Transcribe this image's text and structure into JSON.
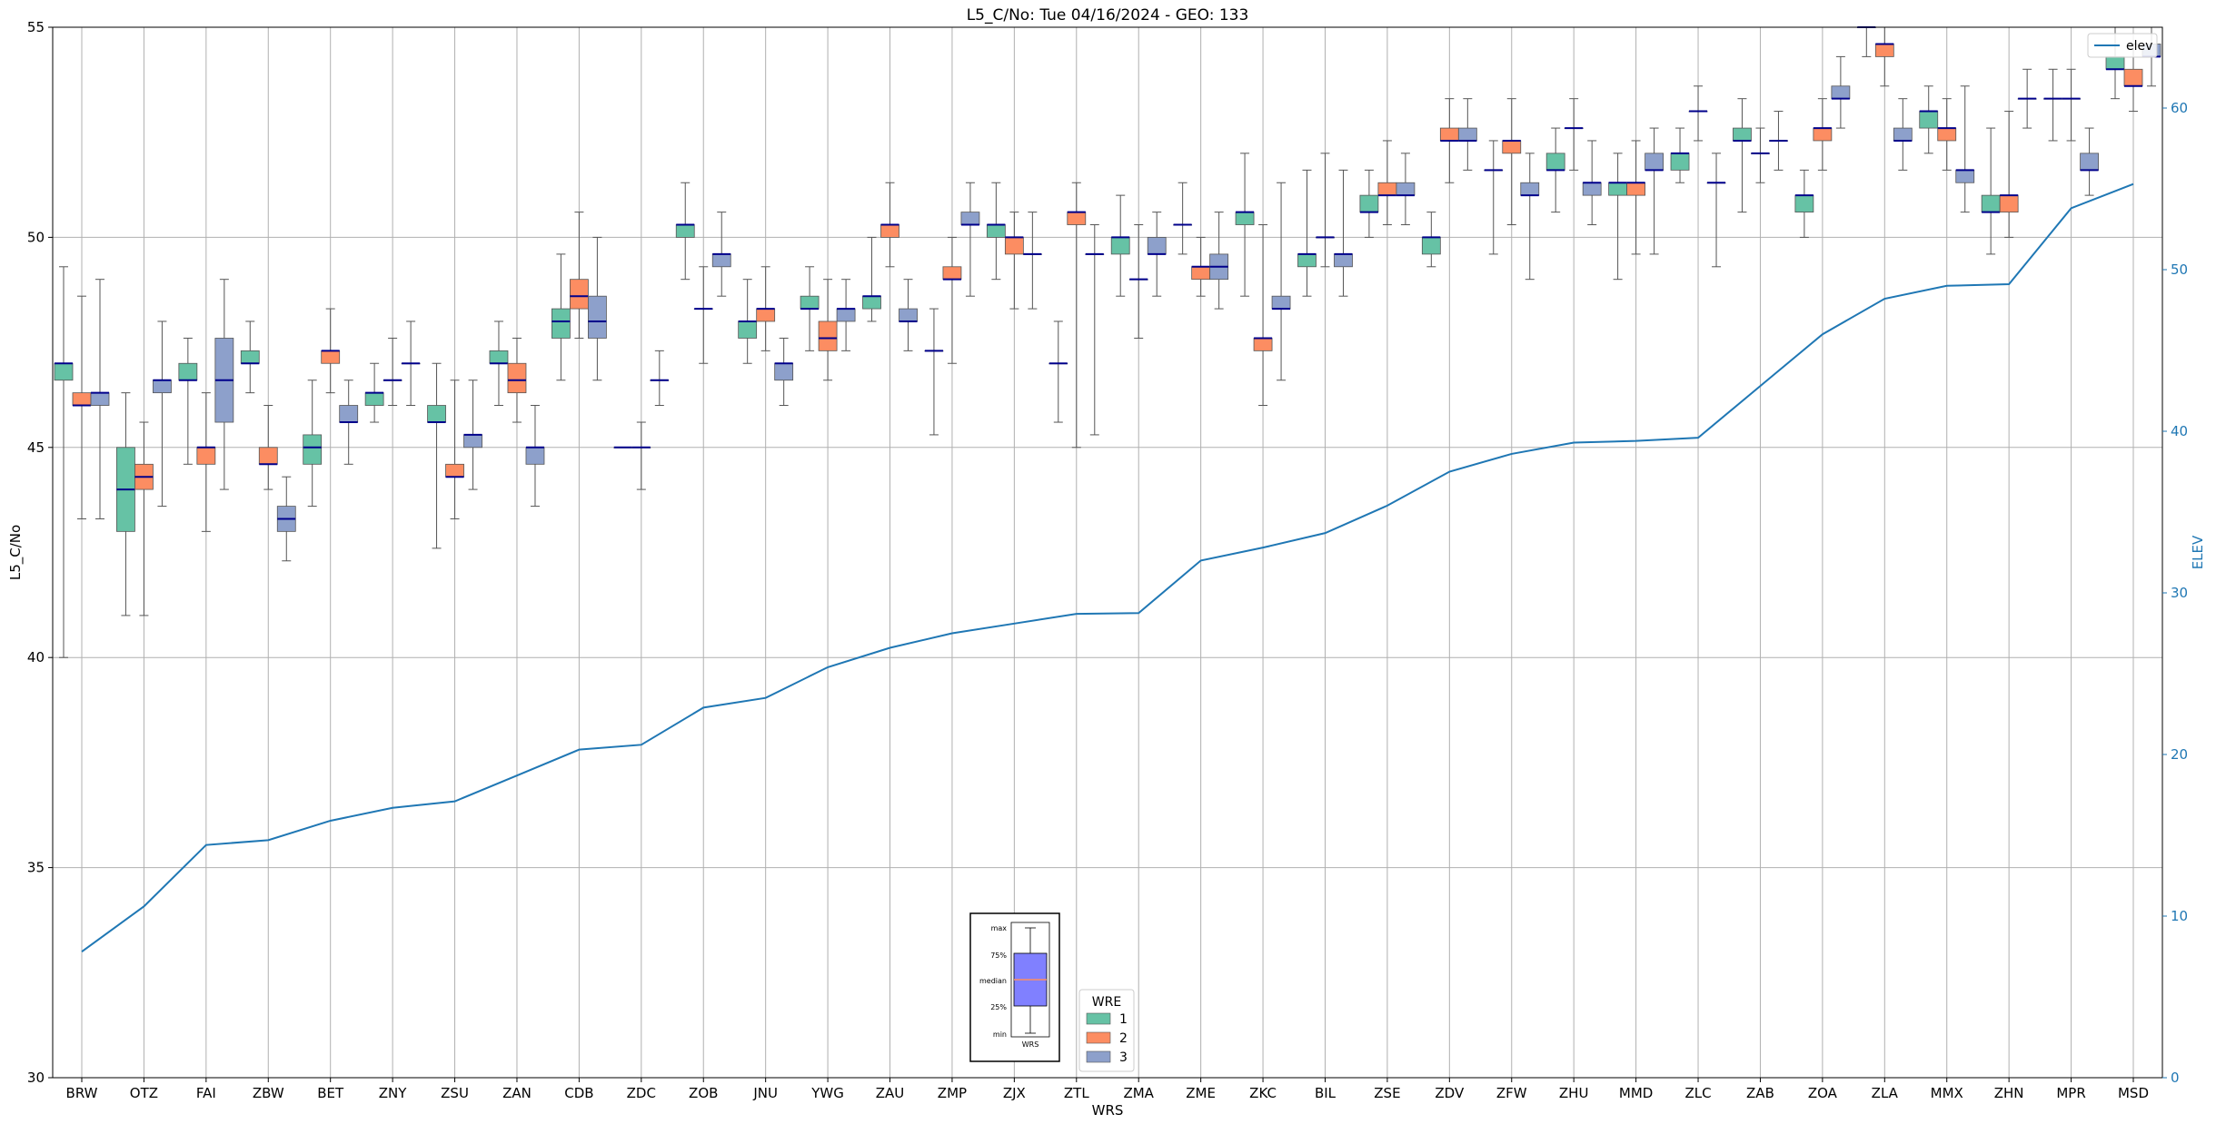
{
  "chart_data": {
    "type": "box",
    "title": "L5_C/No: Tue 04/16/2024 - GEO: 133",
    "xlabel": "WRS",
    "ylabel": "L5_C/No",
    "ylabel_right": "ELEV",
    "ylim": [
      30,
      55
    ],
    "ylim_right": [
      0,
      65
    ],
    "yticks": [
      30,
      35,
      40,
      45,
      50,
      55
    ],
    "yticks_right": [
      0,
      10,
      20,
      30,
      40,
      50,
      60
    ],
    "grid": true,
    "colors": {
      "wre1": "#66c2a5",
      "wre2": "#fc8d62",
      "wre3": "#8da0cb",
      "median": "#00008b",
      "elev": "#1f77b4",
      "whisker": "#555555"
    },
    "categories": [
      "BRW",
      "OTZ",
      "FAI",
      "ZBW",
      "BET",
      "ZNY",
      "ZSU",
      "ZAN",
      "CDB",
      "ZDC",
      "ZOB",
      "JNU",
      "YWG",
      "ZAU",
      "ZMP",
      "ZJX",
      "ZTL",
      "ZMA",
      "ZME",
      "ZKC",
      "BIL",
      "ZSE",
      "ZDV",
      "ZFW",
      "ZHU",
      "MMD",
      "ZLC",
      "ZAB",
      "ZOA",
      "ZLA",
      "MMX",
      "ZHN",
      "MPR",
      "MSD"
    ],
    "boxes": [
      {
        "wrs": "BRW",
        "wre": 1,
        "min": 40,
        "q1": 46.6,
        "median": 47,
        "q3": 47,
        "max": 49.3
      },
      {
        "wrs": "BRW",
        "wre": 2,
        "min": 43.3,
        "q1": 46,
        "median": 46,
        "q3": 46.3,
        "max": 48.6
      },
      {
        "wrs": "BRW",
        "wre": 3,
        "min": 43.3,
        "q1": 46,
        "median": 46.3,
        "q3": 46.3,
        "max": 49
      },
      {
        "wrs": "OTZ",
        "wre": 1,
        "min": 41,
        "q1": 43,
        "median": 44,
        "q3": 45,
        "max": 46.3
      },
      {
        "wrs": "OTZ",
        "wre": 2,
        "min": 41,
        "q1": 44,
        "median": 44.3,
        "q3": 44.6,
        "max": 45.6
      },
      {
        "wrs": "OTZ",
        "wre": 3,
        "min": 43.6,
        "q1": 46.3,
        "median": 46.6,
        "q3": 46.6,
        "max": 48
      },
      {
        "wrs": "FAI",
        "wre": 1,
        "min": 44.6,
        "q1": 46.6,
        "median": 46.6,
        "q3": 47,
        "max": 47.6
      },
      {
        "wrs": "FAI",
        "wre": 2,
        "min": 43,
        "q1": 44.6,
        "median": 45,
        "q3": 45,
        "max": 46.3
      },
      {
        "wrs": "FAI",
        "wre": 3,
        "min": 44,
        "q1": 45.6,
        "median": 46.6,
        "q3": 47.6,
        "max": 49
      },
      {
        "wrs": "ZBW",
        "wre": 1,
        "min": 46.3,
        "q1": 47,
        "median": 47,
        "q3": 47.3,
        "max": 48
      },
      {
        "wrs": "ZBW",
        "wre": 2,
        "min": 44,
        "q1": 44.6,
        "median": 44.6,
        "q3": 45,
        "max": 46
      },
      {
        "wrs": "ZBW",
        "wre": 3,
        "min": 42.3,
        "q1": 43,
        "median": 43.3,
        "q3": 43.6,
        "max": 44.3
      },
      {
        "wrs": "BET",
        "wre": 1,
        "min": 43.6,
        "q1": 44.6,
        "median": 45,
        "q3": 45.3,
        "max": 46.6
      },
      {
        "wrs": "BET",
        "wre": 2,
        "min": 46.3,
        "q1": 47,
        "median": 47.3,
        "q3": 47.3,
        "max": 48.3
      },
      {
        "wrs": "BET",
        "wre": 3,
        "min": 44.6,
        "q1": 45.6,
        "median": 45.6,
        "q3": 46,
        "max": 46.6
      },
      {
        "wrs": "ZNY",
        "wre": 1,
        "min": 45.6,
        "q1": 46,
        "median": 46.3,
        "q3": 46.3,
        "max": 47
      },
      {
        "wrs": "ZNY",
        "wre": 2,
        "min": 46,
        "q1": 46.6,
        "median": 46.6,
        "q3": 46.6,
        "max": 47.6
      },
      {
        "wrs": "ZNY",
        "wre": 3,
        "min": 46,
        "q1": 47,
        "median": 47,
        "q3": 47,
        "max": 48
      },
      {
        "wrs": "ZSU",
        "wre": 1,
        "min": 42.6,
        "q1": 45.6,
        "median": 45.6,
        "q3": 46,
        "max": 47
      },
      {
        "wrs": "ZSU",
        "wre": 2,
        "min": 43.3,
        "q1": 44.3,
        "median": 44.3,
        "q3": 44.6,
        "max": 46.6
      },
      {
        "wrs": "ZSU",
        "wre": 3,
        "min": 44,
        "q1": 45,
        "median": 45.3,
        "q3": 45.3,
        "max": 46.6
      },
      {
        "wrs": "ZAN",
        "wre": 1,
        "min": 46,
        "q1": 47,
        "median": 47,
        "q3": 47.3,
        "max": 48
      },
      {
        "wrs": "ZAN",
        "wre": 2,
        "min": 45.6,
        "q1": 46.3,
        "median": 46.6,
        "q3": 47,
        "max": 47.6
      },
      {
        "wrs": "ZAN",
        "wre": 3,
        "min": 43.6,
        "q1": 44.6,
        "median": 45,
        "q3": 45,
        "max": 46
      },
      {
        "wrs": "CDB",
        "wre": 1,
        "min": 46.6,
        "q1": 47.6,
        "median": 48,
        "q3": 48.3,
        "max": 49.6
      },
      {
        "wrs": "CDB",
        "wre": 2,
        "min": 47.6,
        "q1": 48.3,
        "median": 48.6,
        "q3": 49,
        "max": 50.6
      },
      {
        "wrs": "CDB",
        "wre": 3,
        "min": 46.6,
        "q1": 47.6,
        "median": 48,
        "q3": 48.6,
        "max": 50
      },
      {
        "wrs": "ZDC",
        "wre": 1,
        "min": 45,
        "q1": 45,
        "median": 45,
        "q3": 45,
        "max": 45
      },
      {
        "wrs": "ZDC",
        "wre": 2,
        "min": 44,
        "q1": 45,
        "median": 45,
        "q3": 45,
        "max": 45.6
      },
      {
        "wrs": "ZDC",
        "wre": 3,
        "min": 46,
        "q1": 46.6,
        "median": 46.6,
        "q3": 46.6,
        "max": 47.3
      },
      {
        "wrs": "ZOB",
        "wre": 1,
        "min": 49,
        "q1": 50,
        "median": 50.3,
        "q3": 50.3,
        "max": 51.3
      },
      {
        "wrs": "ZOB",
        "wre": 2,
        "min": 47,
        "q1": 48.3,
        "median": 48.3,
        "q3": 48.3,
        "max": 49.3
      },
      {
        "wrs": "ZOB",
        "wre": 3,
        "min": 48.6,
        "q1": 49.3,
        "median": 49.6,
        "q3": 49.6,
        "max": 50.6
      },
      {
        "wrs": "JNU",
        "wre": 1,
        "min": 47,
        "q1": 47.6,
        "median": 48,
        "q3": 48,
        "max": 49
      },
      {
        "wrs": "JNU",
        "wre": 2,
        "min": 47.3,
        "q1": 48,
        "median": 48.3,
        "q3": 48.3,
        "max": 49.3
      },
      {
        "wrs": "JNU",
        "wre": 3,
        "min": 46,
        "q1": 46.6,
        "median": 47,
        "q3": 47,
        "max": 47.6
      },
      {
        "wrs": "YWG",
        "wre": 1,
        "min": 47.3,
        "q1": 48.3,
        "median": 48.3,
        "q3": 48.6,
        "max": 49.3
      },
      {
        "wrs": "YWG",
        "wre": 2,
        "min": 46.6,
        "q1": 47.3,
        "median": 47.6,
        "q3": 48,
        "max": 49
      },
      {
        "wrs": "YWG",
        "wre": 3,
        "min": 47.3,
        "q1": 48,
        "median": 48.3,
        "q3": 48.3,
        "max": 49
      },
      {
        "wrs": "ZAU",
        "wre": 1,
        "min": 48,
        "q1": 48.3,
        "median": 48.6,
        "q3": 48.6,
        "max": 50
      },
      {
        "wrs": "ZAU",
        "wre": 2,
        "min": 49.3,
        "q1": 50,
        "median": 50.3,
        "q3": 50.3,
        "max": 51.3
      },
      {
        "wrs": "ZAU",
        "wre": 3,
        "min": 47.3,
        "q1": 48,
        "median": 48,
        "q3": 48.3,
        "max": 49
      },
      {
        "wrs": "ZMP",
        "wre": 1,
        "min": 45.3,
        "q1": 47.3,
        "median": 47.3,
        "q3": 47.3,
        "max": 48.3
      },
      {
        "wrs": "ZMP",
        "wre": 2,
        "min": 47,
        "q1": 49,
        "median": 49,
        "q3": 49.3,
        "max": 50
      },
      {
        "wrs": "ZMP",
        "wre": 3,
        "min": 48.6,
        "q1": 50.3,
        "median": 50.3,
        "q3": 50.6,
        "max": 51.3
      },
      {
        "wrs": "ZJX",
        "wre": 1,
        "min": 49,
        "q1": 50,
        "median": 50.3,
        "q3": 50.3,
        "max": 51.3
      },
      {
        "wrs": "ZJX",
        "wre": 2,
        "min": 48.3,
        "q1": 49.6,
        "median": 50,
        "q3": 50,
        "max": 50.6
      },
      {
        "wrs": "ZJX",
        "wre": 3,
        "min": 48.3,
        "q1": 49.6,
        "median": 49.6,
        "q3": 49.6,
        "max": 50.6
      },
      {
        "wrs": "ZTL",
        "wre": 1,
        "min": 45.6,
        "q1": 47,
        "median": 47,
        "q3": 47,
        "max": 48
      },
      {
        "wrs": "ZTL",
        "wre": 2,
        "min": 45,
        "q1": 50.3,
        "median": 50.6,
        "q3": 50.6,
        "max": 51.3
      },
      {
        "wrs": "ZTL",
        "wre": 3,
        "min": 45.3,
        "q1": 49.6,
        "median": 49.6,
        "q3": 49.6,
        "max": 50.3
      },
      {
        "wrs": "ZMA",
        "wre": 1,
        "min": 48.6,
        "q1": 49.6,
        "median": 50,
        "q3": 50,
        "max": 51
      },
      {
        "wrs": "ZMA",
        "wre": 2,
        "min": 47.6,
        "q1": 49,
        "median": 49,
        "q3": 49,
        "max": 50.3
      },
      {
        "wrs": "ZMA",
        "wre": 3,
        "min": 48.6,
        "q1": 49.6,
        "median": 49.6,
        "q3": 50,
        "max": 50.6
      },
      {
        "wrs": "ZME",
        "wre": 1,
        "min": 49.6,
        "q1": 50.3,
        "median": 50.3,
        "q3": 50.3,
        "max": 51.3
      },
      {
        "wrs": "ZME",
        "wre": 2,
        "min": 48.6,
        "q1": 49,
        "median": 49.3,
        "q3": 49.3,
        "max": 50
      },
      {
        "wrs": "ZME",
        "wre": 3,
        "min": 48.3,
        "q1": 49,
        "median": 49.3,
        "q3": 49.6,
        "max": 50.6
      },
      {
        "wrs": "ZKC",
        "wre": 1,
        "min": 48.6,
        "q1": 50.3,
        "median": 50.6,
        "q3": 50.6,
        "max": 52
      },
      {
        "wrs": "ZKC",
        "wre": 2,
        "min": 46,
        "q1": 47.3,
        "median": 47.6,
        "q3": 47.6,
        "max": 50.3
      },
      {
        "wrs": "ZKC",
        "wre": 3,
        "min": 46.6,
        "q1": 48.3,
        "median": 48.3,
        "q3": 48.6,
        "max": 51.3
      },
      {
        "wrs": "BIL",
        "wre": 1,
        "min": 48.6,
        "q1": 49.3,
        "median": 49.6,
        "q3": 49.6,
        "max": 51.6
      },
      {
        "wrs": "BIL",
        "wre": 2,
        "min": 49.3,
        "q1": 50,
        "median": 50,
        "q3": 50,
        "max": 52
      },
      {
        "wrs": "BIL",
        "wre": 3,
        "min": 48.6,
        "q1": 49.3,
        "median": 49.6,
        "q3": 49.6,
        "max": 51.6
      },
      {
        "wrs": "ZSE",
        "wre": 1,
        "min": 50,
        "q1": 50.6,
        "median": 50.6,
        "q3": 51,
        "max": 51.6
      },
      {
        "wrs": "ZSE",
        "wre": 2,
        "min": 50.3,
        "q1": 51,
        "median": 51,
        "q3": 51.3,
        "max": 52.3
      },
      {
        "wrs": "ZSE",
        "wre": 3,
        "min": 50.3,
        "q1": 51,
        "median": 51,
        "q3": 51.3,
        "max": 52
      },
      {
        "wrs": "ZDV",
        "wre": 1,
        "min": 49.3,
        "q1": 49.6,
        "median": 50,
        "q3": 50,
        "max": 50.6
      },
      {
        "wrs": "ZDV",
        "wre": 2,
        "min": 51.3,
        "q1": 52.3,
        "median": 52.3,
        "q3": 52.6,
        "max": 53.3
      },
      {
        "wrs": "ZDV",
        "wre": 3,
        "min": 51.6,
        "q1": 52.3,
        "median": 52.3,
        "q3": 52.6,
        "max": 53.3
      },
      {
        "wrs": "ZFW",
        "wre": 1,
        "min": 49.6,
        "q1": 51.6,
        "median": 51.6,
        "q3": 51.6,
        "max": 52.3
      },
      {
        "wrs": "ZFW",
        "wre": 2,
        "min": 50.3,
        "q1": 52,
        "median": 52.3,
        "q3": 52.3,
        "max": 53.3
      },
      {
        "wrs": "ZFW",
        "wre": 3,
        "min": 49,
        "q1": 51,
        "median": 51,
        "q3": 51.3,
        "max": 52
      },
      {
        "wrs": "ZHU",
        "wre": 1,
        "min": 50.6,
        "q1": 51.6,
        "median": 51.6,
        "q3": 52,
        "max": 52.6
      },
      {
        "wrs": "ZHU",
        "wre": 2,
        "min": 51.6,
        "q1": 52.6,
        "median": 52.6,
        "q3": 52.6,
        "max": 53.3
      },
      {
        "wrs": "ZHU",
        "wre": 3,
        "min": 50.3,
        "q1": 51,
        "median": 51.3,
        "q3": 51.3,
        "max": 52.3
      },
      {
        "wrs": "MMD",
        "wre": 1,
        "min": 49,
        "q1": 51,
        "median": 51.3,
        "q3": 51.3,
        "max": 52
      },
      {
        "wrs": "MMD",
        "wre": 2,
        "min": 49.6,
        "q1": 51,
        "median": 51.3,
        "q3": 51.3,
        "max": 52.3
      },
      {
        "wrs": "MMD",
        "wre": 3,
        "min": 49.6,
        "q1": 51.6,
        "median": 51.6,
        "q3": 52,
        "max": 52.6
      },
      {
        "wrs": "ZLC",
        "wre": 1,
        "min": 51.3,
        "q1": 51.6,
        "median": 52,
        "q3": 52,
        "max": 52.6
      },
      {
        "wrs": "ZLC",
        "wre": 2,
        "min": 52.3,
        "q1": 53,
        "median": 53,
        "q3": 53,
        "max": 53.6
      },
      {
        "wrs": "ZLC",
        "wre": 3,
        "min": 49.3,
        "q1": 51.3,
        "median": 51.3,
        "q3": 51.3,
        "max": 52
      },
      {
        "wrs": "ZAB",
        "wre": 1,
        "min": 50.6,
        "q1": 52.3,
        "median": 52.3,
        "q3": 52.6,
        "max": 53.3
      },
      {
        "wrs": "ZAB",
        "wre": 2,
        "min": 51.3,
        "q1": 52,
        "median": 52,
        "q3": 52,
        "max": 52.6
      },
      {
        "wrs": "ZAB",
        "wre": 3,
        "min": 51.6,
        "q1": 52.3,
        "median": 52.3,
        "q3": 52.3,
        "max": 53
      },
      {
        "wrs": "ZOA",
        "wre": 1,
        "min": 50,
        "q1": 50.6,
        "median": 51,
        "q3": 51,
        "max": 51.6
      },
      {
        "wrs": "ZOA",
        "wre": 2,
        "min": 51.6,
        "q1": 52.3,
        "median": 52.6,
        "q3": 52.6,
        "max": 53.3
      },
      {
        "wrs": "ZOA",
        "wre": 3,
        "min": 52.6,
        "q1": 53.3,
        "median": 53.3,
        "q3": 53.6,
        "max": 54.3
      },
      {
        "wrs": "ZLA",
        "wre": 1,
        "min": 54.3,
        "q1": 55,
        "median": 55,
        "q3": 55,
        "max": 55
      },
      {
        "wrs": "ZLA",
        "wre": 2,
        "min": 53.6,
        "q1": 54.3,
        "median": 54.6,
        "q3": 54.6,
        "max": 55
      },
      {
        "wrs": "ZLA",
        "wre": 3,
        "min": 51.6,
        "q1": 52.3,
        "median": 52.3,
        "q3": 52.6,
        "max": 53.3
      },
      {
        "wrs": "MMX",
        "wre": 1,
        "min": 52,
        "q1": 52.6,
        "median": 53,
        "q3": 53,
        "max": 53.6
      },
      {
        "wrs": "MMX",
        "wre": 2,
        "min": 51.6,
        "q1": 52.3,
        "median": 52.6,
        "q3": 52.6,
        "max": 53.3
      },
      {
        "wrs": "MMX",
        "wre": 3,
        "min": 50.6,
        "q1": 51.3,
        "median": 51.6,
        "q3": 51.6,
        "max": 53.6
      },
      {
        "wrs": "ZHN",
        "wre": 1,
        "min": 49.6,
        "q1": 50.6,
        "median": 50.6,
        "q3": 51,
        "max": 52.6
      },
      {
        "wrs": "ZHN",
        "wre": 2,
        "min": 50,
        "q1": 50.6,
        "median": 51,
        "q3": 51,
        "max": 53
      },
      {
        "wrs": "ZHN",
        "wre": 3,
        "min": 52.6,
        "q1": 53.3,
        "median": 53.3,
        "q3": 53.3,
        "max": 54
      },
      {
        "wrs": "MPR",
        "wre": 1,
        "min": 52.3,
        "q1": 53.3,
        "median": 53.3,
        "q3": 53.3,
        "max": 54
      },
      {
        "wrs": "MPR",
        "wre": 2,
        "min": 52.3,
        "q1": 53.3,
        "median": 53.3,
        "q3": 53.3,
        "max": 54
      },
      {
        "wrs": "MPR",
        "wre": 3,
        "min": 51,
        "q1": 51.6,
        "median": 51.6,
        "q3": 52,
        "max": 52.6
      },
      {
        "wrs": "MSD",
        "wre": 1,
        "min": 53.3,
        "q1": 54,
        "median": 54,
        "q3": 54.3,
        "max": 55
      },
      {
        "wrs": "MSD",
        "wre": 2,
        "min": 53,
        "q1": 53.6,
        "median": 53.6,
        "q3": 54,
        "max": 54.6
      },
      {
        "wrs": "MSD",
        "wre": 3,
        "min": 53.6,
        "q1": 54.3,
        "median": 54.3,
        "q3": 54.6,
        "max": 55
      }
    ],
    "elev": [
      7.8,
      10.6,
      14.4,
      14.7,
      15.9,
      16.7,
      17.1,
      18.7,
      20.3,
      20.6,
      22.9,
      23.5,
      25.4,
      26.6,
      27.5,
      28.1,
      28.7,
      28.75,
      32.0,
      32.8,
      33.7,
      35.4,
      37.5,
      38.6,
      39.3,
      39.4,
      39.6,
      42.8,
      46.0,
      48.2,
      49.0,
      49.1,
      53.8,
      55.3
    ],
    "legend_elev": {
      "label": "elev",
      "position": "upper right"
    },
    "legend_wre": {
      "title": "WRE",
      "position": "lower center",
      "entries": [
        {
          "label": "1",
          "color": "#66c2a5"
        },
        {
          "label": "2",
          "color": "#fc8d62"
        },
        {
          "label": "3",
          "color": "#8da0cb"
        }
      ]
    },
    "inset_key": {
      "labels": [
        "max",
        "75%",
        "median",
        "25%",
        "min"
      ],
      "xlabel": "WRS",
      "fill": "#8080ff",
      "median_color": "#fc8d62"
    }
  }
}
